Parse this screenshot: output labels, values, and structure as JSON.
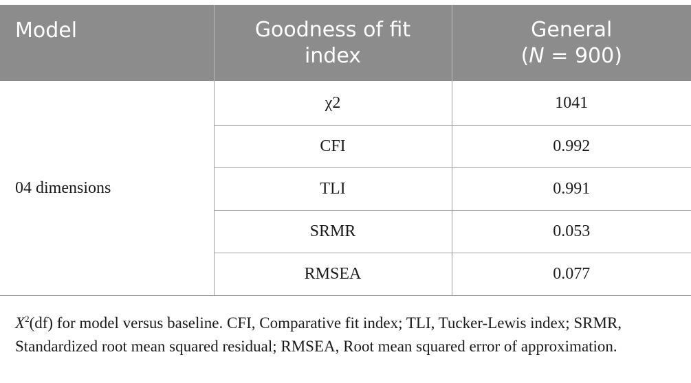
{
  "table": {
    "headers": {
      "model": "Model",
      "index_line1": "Goodness of fit",
      "index_line2": "index",
      "general_line1": "General",
      "general_paren_open": "(",
      "general_n": "N",
      "general_eq": " = 900)"
    },
    "model_label": "04 dimensions",
    "rows": [
      {
        "index": "χ2",
        "value": "1041"
      },
      {
        "index": "CFI",
        "value": "0.992"
      },
      {
        "index": "TLI",
        "value": "0.991"
      },
      {
        "index": "SRMR",
        "value": "0.053"
      },
      {
        "index": "RMSEA",
        "value": "0.077"
      }
    ]
  },
  "footnote": {
    "var": "X",
    "sup": "2",
    "text": "(df) for model versus baseline. CFI, Comparative fit index; TLI, Tucker-Lewis index; SRMR, Standardized root mean squared residual; RMSEA, Root mean squared error of approximation."
  }
}
